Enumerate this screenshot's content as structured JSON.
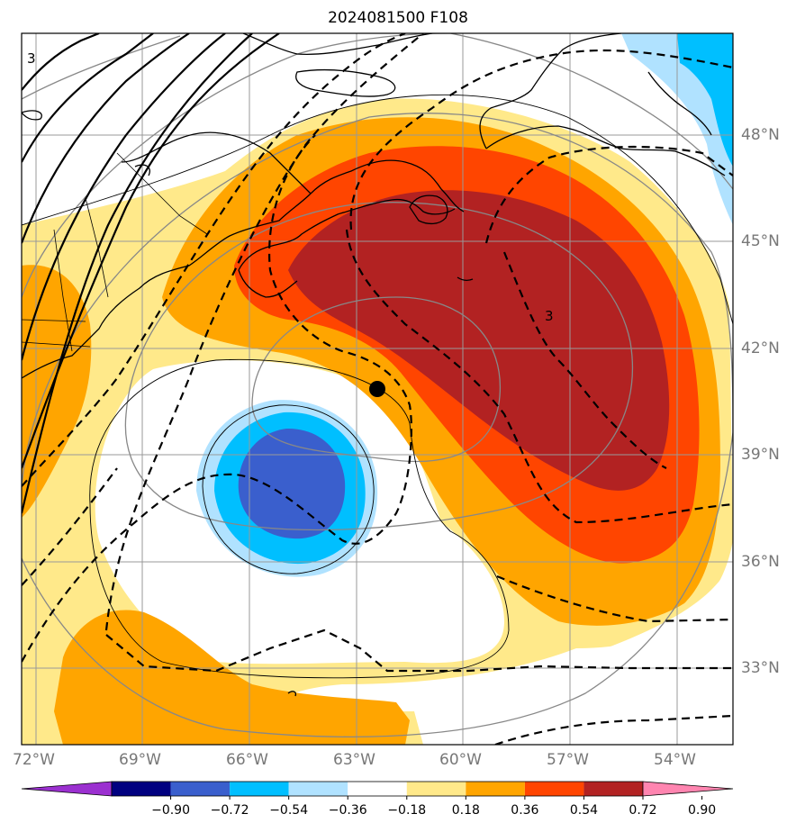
{
  "title": "2024081500 F108",
  "lat_labels": [
    "48°N",
    "45°N",
    "42°N",
    "39°N",
    "36°N",
    "33°N"
  ],
  "lon_labels": [
    "72°W",
    "69°W",
    "66°W",
    "63°W",
    "60°W",
    "57°W",
    "54°W"
  ],
  "colorbar": {
    "levels": [
      "−0.90",
      "−0.72",
      "−0.54",
      "−0.36",
      "−0.18",
      "0.18",
      "0.36",
      "0.54",
      "0.72",
      "0.90"
    ],
    "colors": [
      "#9b30d0",
      "#000080",
      "#3a5fcd",
      "#00bfff",
      "#b0e2ff",
      "#ffffff",
      "#ffe98a",
      "#ffa500",
      "#ff4500",
      "#b22222",
      "#ff85b0"
    ]
  },
  "contour_label": "3",
  "storm_marker": {
    "name": "storm-center-dot",
    "lat": 41.0,
    "lon": -62.3
  },
  "fill_colors": {
    "light_yellow": "#ffe98a",
    "orange": "#ffa500",
    "red_orange": "#ff4500",
    "dark_red": "#b22222",
    "light_blue": "#b0e2ff",
    "deep_sky_blue": "#00bfff",
    "royal_blue": "#3a5fcd"
  }
}
